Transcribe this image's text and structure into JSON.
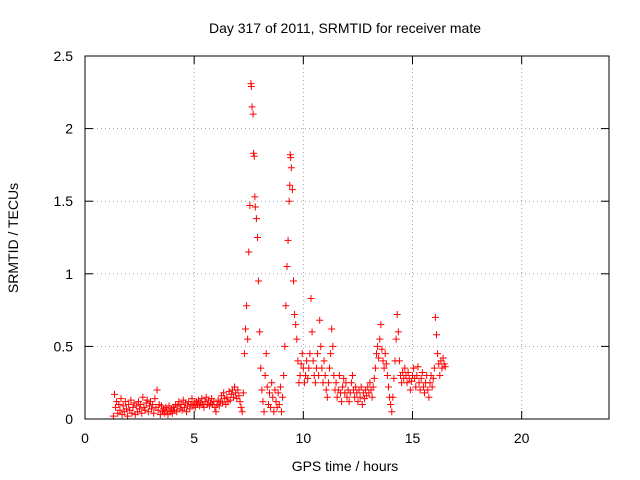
{
  "chart_data": {
    "type": "scatter",
    "title": "Day 317 of 2011, SRMTID for receiver mate",
    "xlabel": "GPS time / hours",
    "ylabel": "SRMTID / TECUs",
    "xlim": [
      0,
      24
    ],
    "ylim": [
      0,
      2.5
    ],
    "xticks": [
      "0",
      "5",
      "10",
      "15",
      "20"
    ],
    "yticks": [
      "0",
      "0.5",
      "1",
      "1.5",
      "2",
      "2.5"
    ],
    "grid": true,
    "marker": "plus",
    "color": "#ff0000",
    "series": [
      {
        "points": [
          [
            1.3,
            0.02
          ],
          [
            1.35,
            0.17
          ],
          [
            1.4,
            0.08
          ],
          [
            1.45,
            0.12
          ],
          [
            1.5,
            0.04
          ],
          [
            1.55,
            0.1
          ],
          [
            1.6,
            0.06
          ],
          [
            1.65,
            0.14
          ],
          [
            1.7,
            0.03
          ],
          [
            1.75,
            0.09
          ],
          [
            1.8,
            0.05
          ],
          [
            1.85,
            0.12
          ],
          [
            1.9,
            0.07
          ],
          [
            1.95,
            0.02
          ],
          [
            2.0,
            0.1
          ],
          [
            2.05,
            0.06
          ],
          [
            2.1,
            0.13
          ],
          [
            2.15,
            0.04
          ],
          [
            2.2,
            0.08
          ],
          [
            2.25,
            0.11
          ],
          [
            2.3,
            0.03
          ],
          [
            2.35,
            0.09
          ],
          [
            2.4,
            0.05
          ],
          [
            2.45,
            0.12
          ],
          [
            2.5,
            0.07
          ],
          [
            2.55,
            0.1
          ],
          [
            2.6,
            0.04
          ],
          [
            2.65,
            0.15
          ],
          [
            2.7,
            0.08
          ],
          [
            2.75,
            0.06
          ],
          [
            2.8,
            0.11
          ],
          [
            2.85,
            0.13
          ],
          [
            2.9,
            0.05
          ],
          [
            2.95,
            0.09
          ],
          [
            3.0,
            0.12
          ],
          [
            3.05,
            0.07
          ],
          [
            3.1,
            0.1
          ],
          [
            3.15,
            0.04
          ],
          [
            3.2,
            0.14
          ],
          [
            3.25,
            0.08
          ],
          [
            3.3,
            0.2
          ],
          [
            3.35,
            0.06
          ],
          [
            3.4,
            0.1
          ],
          [
            3.45,
            0.03
          ],
          [
            3.5,
            0.09
          ],
          [
            3.55,
            0.05
          ],
          [
            3.6,
            0.07
          ],
          [
            3.65,
            0.04
          ],
          [
            3.7,
            0.08
          ],
          [
            3.75,
            0.06
          ],
          [
            3.8,
            0.03
          ],
          [
            3.85,
            0.09
          ],
          [
            3.9,
            0.05
          ],
          [
            3.95,
            0.07
          ],
          [
            4.0,
            0.04
          ],
          [
            4.05,
            0.08
          ],
          [
            4.1,
            0.06
          ],
          [
            4.15,
            0.1
          ],
          [
            4.2,
            0.05
          ],
          [
            4.25,
            0.09
          ],
          [
            4.3,
            0.12
          ],
          [
            4.35,
            0.07
          ],
          [
            4.4,
            0.1
          ],
          [
            4.45,
            0.06
          ],
          [
            4.5,
            0.13
          ],
          [
            4.55,
            0.08
          ],
          [
            4.6,
            0.11
          ],
          [
            4.65,
            0.05
          ],
          [
            4.7,
            0.09
          ],
          [
            4.75,
            0.12
          ],
          [
            4.8,
            0.07
          ],
          [
            4.85,
            0.1
          ],
          [
            4.9,
            0.14
          ],
          [
            4.95,
            0.09
          ],
          [
            5.0,
            0.11
          ],
          [
            5.05,
            0.08
          ],
          [
            5.1,
            0.12
          ],
          [
            5.15,
            0.1
          ],
          [
            5.2,
            0.13
          ],
          [
            5.25,
            0.09
          ],
          [
            5.3,
            0.11
          ],
          [
            5.35,
            0.14
          ],
          [
            5.4,
            0.1
          ],
          [
            5.45,
            0.08
          ],
          [
            5.5,
            0.12
          ],
          [
            5.55,
            0.15
          ],
          [
            5.6,
            0.1
          ],
          [
            5.65,
            0.13
          ],
          [
            5.7,
            0.09
          ],
          [
            5.75,
            0.11
          ],
          [
            5.8,
            0.14
          ],
          [
            5.85,
            0.1
          ],
          [
            5.9,
            0.12
          ],
          [
            5.95,
            0.08
          ],
          [
            6.0,
            0.05
          ],
          [
            6.05,
            0.1
          ],
          [
            6.1,
            0.13
          ],
          [
            6.15,
            0.09
          ],
          [
            6.2,
            0.12
          ],
          [
            6.25,
            0.16
          ],
          [
            6.3,
            0.11
          ],
          [
            6.35,
            0.18
          ],
          [
            6.4,
            0.14
          ],
          [
            6.45,
            0.1
          ],
          [
            6.5,
            0.15
          ],
          [
            6.55,
            0.12
          ],
          [
            6.6,
            0.19
          ],
          [
            6.65,
            0.13
          ],
          [
            6.7,
            0.17
          ],
          [
            6.75,
            0.2
          ],
          [
            6.8,
            0.15
          ],
          [
            6.85,
            0.22
          ],
          [
            6.9,
            0.18
          ],
          [
            6.95,
            0.14
          ],
          [
            7.0,
            0.2
          ],
          [
            7.05,
            0.16
          ],
          [
            7.1,
            0.12
          ],
          [
            7.15,
            0.08
          ],
          [
            7.2,
            0.05
          ],
          [
            7.25,
            0.18
          ],
          [
            7.3,
            0.45
          ],
          [
            7.35,
            0.62
          ],
          [
            7.4,
            0.78
          ],
          [
            7.45,
            0.55
          ],
          [
            7.5,
            1.15
          ],
          [
            7.55,
            1.47
          ],
          [
            7.6,
            2.31
          ],
          [
            7.62,
            2.29
          ],
          [
            7.65,
            2.15
          ],
          [
            7.7,
            2.1
          ],
          [
            7.72,
            1.83
          ],
          [
            7.75,
            1.81
          ],
          [
            7.78,
            1.53
          ],
          [
            7.8,
            1.46
          ],
          [
            7.85,
            1.38
          ],
          [
            7.9,
            1.25
          ],
          [
            7.95,
            0.95
          ],
          [
            8.0,
            0.6
          ],
          [
            8.05,
            0.35
          ],
          [
            8.1,
            0.2
          ],
          [
            8.15,
            0.12
          ],
          [
            8.2,
            0.05
          ],
          [
            8.25,
            0.3
          ],
          [
            8.3,
            0.45
          ],
          [
            8.35,
            0.22
          ],
          [
            8.4,
            0.1
          ],
          [
            8.45,
            0.18
          ],
          [
            8.5,
            0.08
          ],
          [
            8.55,
            0.25
          ],
          [
            8.6,
            0.15
          ],
          [
            8.65,
            0.05
          ],
          [
            8.7,
            0.2
          ],
          [
            8.75,
            0.12
          ],
          [
            8.8,
            0.08
          ],
          [
            8.85,
            0.18
          ],
          [
            8.9,
            0.1
          ],
          [
            8.95,
            0.22
          ],
          [
            9.0,
            0.05
          ],
          [
            9.05,
            0.15
          ],
          [
            9.1,
            0.3
          ],
          [
            9.15,
            0.5
          ],
          [
            9.2,
            0.78
          ],
          [
            9.25,
            1.05
          ],
          [
            9.3,
            1.23
          ],
          [
            9.35,
            1.5
          ],
          [
            9.38,
            1.61
          ],
          [
            9.4,
            1.82
          ],
          [
            9.42,
            1.8
          ],
          [
            9.45,
            1.73
          ],
          [
            9.5,
            1.58
          ],
          [
            9.55,
            0.95
          ],
          [
            9.6,
            0.72
          ],
          [
            9.65,
            0.65
          ],
          [
            9.7,
            0.55
          ],
          [
            9.75,
            0.4
          ],
          [
            9.8,
            0.25
          ],
          [
            9.85,
            0.3
          ],
          [
            9.9,
            0.38
          ],
          [
            9.95,
            0.45
          ],
          [
            10.0,
            0.35
          ],
          [
            10.05,
            0.25
          ],
          [
            10.1,
            0.3
          ],
          [
            10.15,
            0.4
          ],
          [
            10.2,
            0.28
          ],
          [
            10.25,
            0.35
          ],
          [
            10.3,
            0.45
          ],
          [
            10.35,
            0.83
          ],
          [
            10.4,
            0.6
          ],
          [
            10.45,
            0.4
          ],
          [
            10.5,
            0.3
          ],
          [
            10.55,
            0.25
          ],
          [
            10.6,
            0.35
          ],
          [
            10.65,
            0.45
          ],
          [
            10.7,
            0.3
          ],
          [
            10.75,
            0.68
          ],
          [
            10.8,
            0.5
          ],
          [
            10.85,
            0.35
          ],
          [
            10.9,
            0.25
          ],
          [
            10.95,
            0.4
          ],
          [
            11.0,
            0.3
          ],
          [
            11.05,
            0.2
          ],
          [
            11.1,
            0.15
          ],
          [
            11.15,
            0.25
          ],
          [
            11.2,
            0.35
          ],
          [
            11.25,
            0.45
          ],
          [
            11.3,
            0.62
          ],
          [
            11.35,
            0.5
          ],
          [
            11.4,
            0.3
          ],
          [
            11.45,
            0.2
          ],
          [
            11.5,
            0.25
          ],
          [
            11.55,
            0.15
          ],
          [
            11.6,
            0.2
          ],
          [
            11.65,
            0.3
          ],
          [
            11.7,
            0.18
          ],
          [
            11.75,
            0.12
          ],
          [
            11.8,
            0.22
          ],
          [
            11.85,
            0.28
          ],
          [
            11.9,
            0.18
          ],
          [
            11.95,
            0.25
          ],
          [
            12.0,
            0.15
          ],
          [
            12.05,
            0.2
          ],
          [
            12.1,
            0.12
          ],
          [
            12.15,
            0.18
          ],
          [
            12.2,
            0.25
          ],
          [
            12.25,
            0.3
          ],
          [
            12.3,
            0.2
          ],
          [
            12.35,
            0.15
          ],
          [
            12.4,
            0.22
          ],
          [
            12.45,
            0.18
          ],
          [
            12.5,
            0.12
          ],
          [
            12.55,
            0.2
          ],
          [
            12.6,
            0.15
          ],
          [
            12.65,
            0.22
          ],
          [
            12.7,
            0.1
          ],
          [
            12.75,
            0.18
          ],
          [
            12.8,
            0.14
          ],
          [
            12.85,
            0.2
          ],
          [
            12.9,
            0.16
          ],
          [
            12.95,
            0.22
          ],
          [
            13.0,
            0.18
          ],
          [
            13.05,
            0.25
          ],
          [
            13.1,
            0.2
          ],
          [
            13.15,
            0.15
          ],
          [
            13.2,
            0.22
          ],
          [
            13.25,
            0.28
          ],
          [
            13.3,
            0.35
          ],
          [
            13.35,
            0.45
          ],
          [
            13.4,
            0.5
          ],
          [
            13.45,
            0.42
          ],
          [
            13.5,
            0.55
          ],
          [
            13.55,
            0.65
          ],
          [
            13.6,
            0.48
          ],
          [
            13.65,
            0.4
          ],
          [
            13.7,
            0.35
          ],
          [
            13.75,
            0.45
          ],
          [
            13.8,
            0.38
          ],
          [
            13.85,
            0.3
          ],
          [
            13.9,
            0.22
          ],
          [
            13.95,
            0.15
          ],
          [
            14.0,
            0.1
          ],
          [
            14.05,
            0.05
          ],
          [
            14.1,
            0.15
          ],
          [
            14.15,
            0.28
          ],
          [
            14.2,
            0.4
          ],
          [
            14.25,
            0.55
          ],
          [
            14.3,
            0.72
          ],
          [
            14.35,
            0.6
          ],
          [
            14.4,
            0.4
          ],
          [
            14.45,
            0.3
          ],
          [
            14.5,
            0.25
          ],
          [
            14.55,
            0.32
          ],
          [
            14.6,
            0.28
          ],
          [
            14.65,
            0.35
          ],
          [
            14.7,
            0.3
          ],
          [
            14.75,
            0.25
          ],
          [
            14.8,
            0.32
          ],
          [
            14.85,
            0.28
          ],
          [
            14.9,
            0.2
          ],
          [
            14.95,
            0.26
          ],
          [
            15.0,
            0.3
          ],
          [
            15.05,
            0.35
          ],
          [
            15.1,
            0.28
          ],
          [
            15.15,
            0.22
          ],
          [
            15.2,
            0.3
          ],
          [
            15.25,
            0.36
          ],
          [
            15.3,
            0.25
          ],
          [
            15.35,
            0.2
          ],
          [
            15.4,
            0.28
          ],
          [
            15.45,
            0.32
          ],
          [
            15.5,
            0.22
          ],
          [
            15.55,
            0.18
          ],
          [
            15.6,
            0.25
          ],
          [
            15.65,
            0.3
          ],
          [
            15.7,
            0.2
          ],
          [
            15.75,
            0.15
          ],
          [
            15.8,
            0.25
          ],
          [
            15.85,
            0.3
          ],
          [
            15.9,
            0.22
          ],
          [
            15.95,
            0.28
          ],
          [
            16.0,
            0.35
          ],
          [
            16.05,
            0.7
          ],
          [
            16.1,
            0.58
          ],
          [
            16.15,
            0.45
          ],
          [
            16.2,
            0.38
          ],
          [
            16.25,
            0.3
          ],
          [
            16.3,
            0.4
          ],
          [
            16.35,
            0.35
          ],
          [
            16.4,
            0.42
          ],
          [
            16.45,
            0.38
          ],
          [
            16.5,
            0.36
          ]
        ]
      }
    ]
  }
}
